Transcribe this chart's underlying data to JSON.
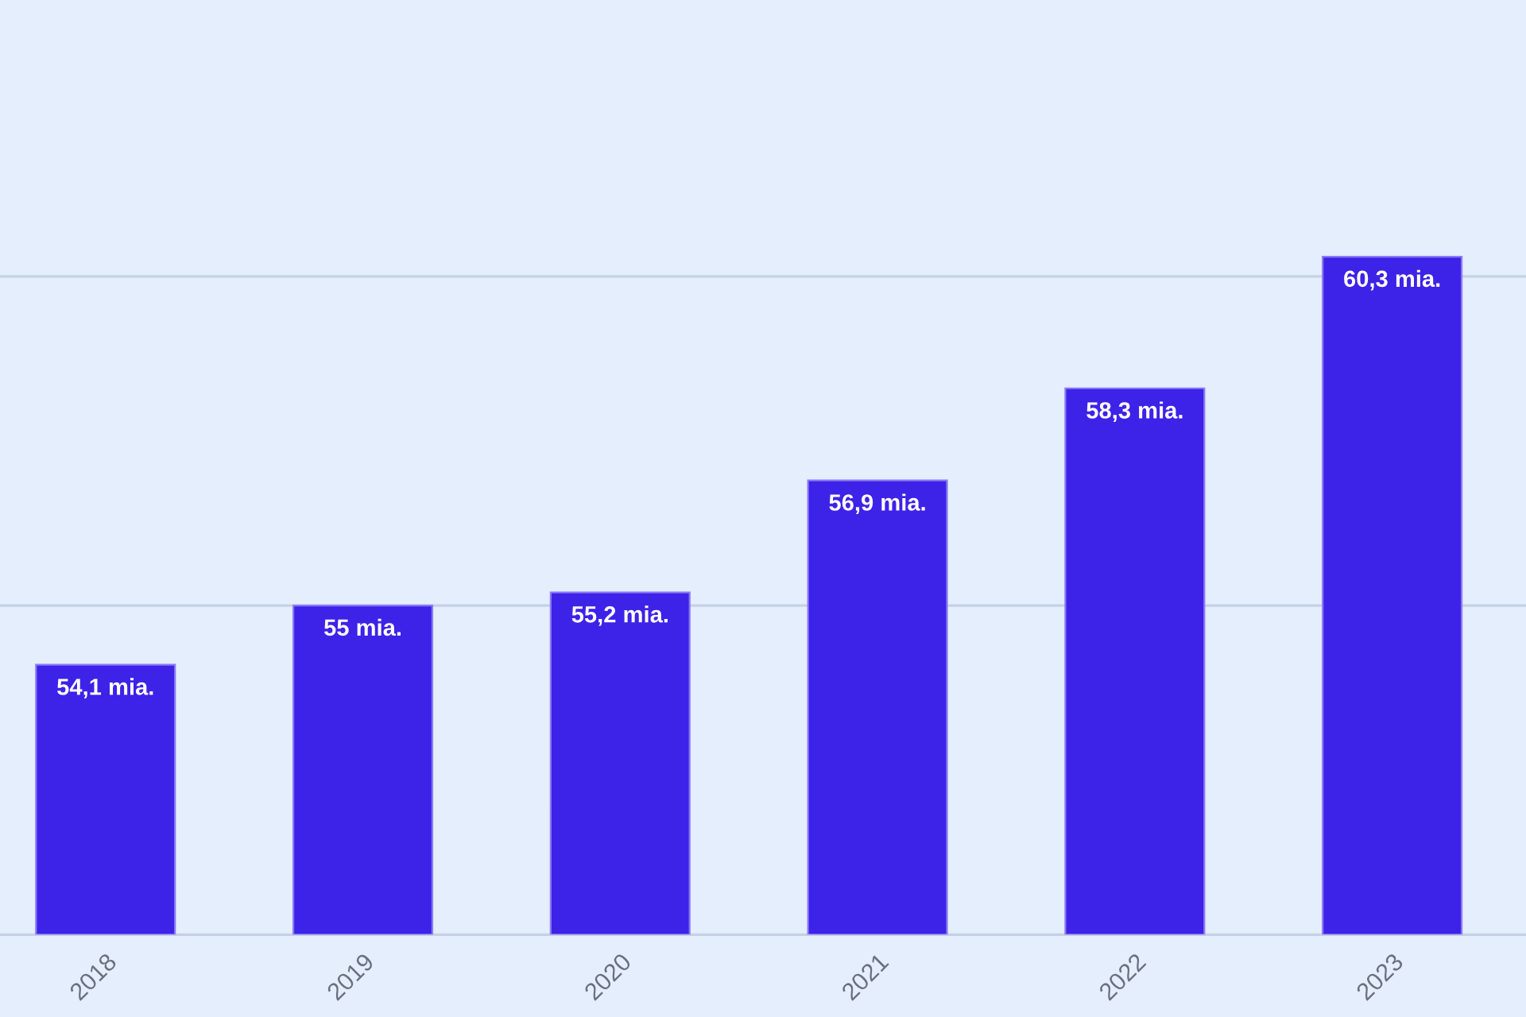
{
  "chart_data": {
    "type": "bar",
    "categories": [
      "2018",
      "2019",
      "2020",
      "2021",
      "2022",
      "2023"
    ],
    "values": [
      54.1,
      55,
      55.2,
      56.9,
      58.3,
      60.3
    ],
    "value_labels": [
      "54,1 mia.",
      "55 mia.",
      "55,2 mia.",
      "56,9 mia.",
      "58,3 mia.",
      "60,3 mia."
    ],
    "color": "#3d22e8",
    "ylim": [
      50,
      64.2
    ],
    "ref_lines": [
      {
        "axis": "y",
        "value": 50,
        "color": "#c6d0e6"
      },
      {
        "axis": "y",
        "value": 55,
        "color": "#c6d0e6"
      },
      {
        "axis": "y",
        "value": 60,
        "color": "#c6d0e6"
      }
    ],
    "tick_labels": "x"
  }
}
